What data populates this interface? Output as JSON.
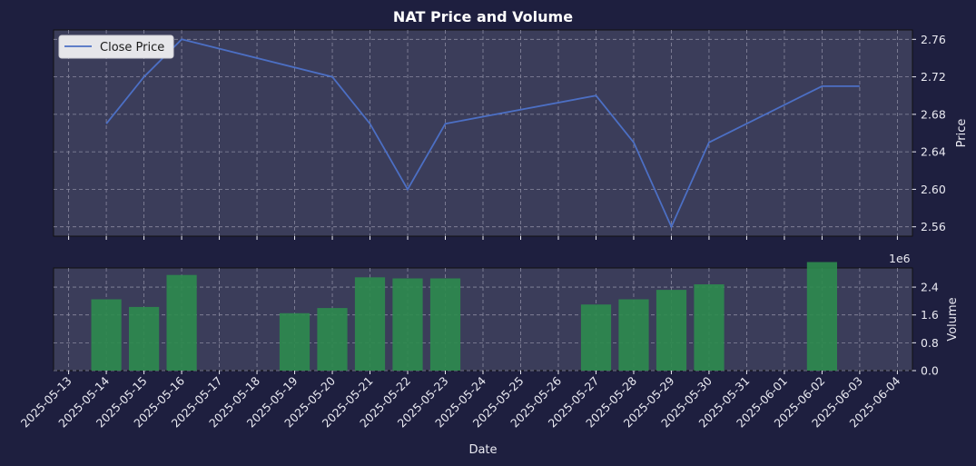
{
  "chart_data": [
    {
      "type": "line",
      "title": "NAT Price and Volume",
      "ylabel": "Price",
      "ylim": [
        2.55,
        2.77
      ],
      "yticks": [
        "2.56",
        "2.60",
        "2.64",
        "2.68",
        "2.72",
        "2.76"
      ],
      "grid": true,
      "legend_position": "top-left",
      "series": [
        {
          "name": "Close Price",
          "color": "#4c6fc4",
          "x": [
            "2025-05-14",
            "2025-05-15",
            "2025-05-16",
            "2025-05-20",
            "2025-05-21",
            "2025-05-22",
            "2025-05-23",
            "2025-05-27",
            "2025-05-28",
            "2025-05-29",
            "2025-05-30",
            "2025-06-02",
            "2025-06-03"
          ],
          "values": [
            2.67,
            2.72,
            2.76,
            2.72,
            2.67,
            2.6,
            2.67,
            2.7,
            2.65,
            2.56,
            2.65,
            2.71,
            2.71
          ]
        }
      ]
    },
    {
      "type": "bar",
      "ylabel": "Volume",
      "xlabel": "Date",
      "y_multiplier": "1e6",
      "ylim": [
        0,
        2.95
      ],
      "yticks": [
        "0.0",
        "0.8",
        "1.6",
        "2.4"
      ],
      "grid": true,
      "series": [
        {
          "name": "",
          "color": "#2e8b4e",
          "x": [
            "2025-05-14",
            "2025-05-15",
            "2025-05-16",
            "2025-05-19",
            "2025-05-20",
            "2025-05-21",
            "2025-05-22",
            "2025-05-23",
            "2025-05-27",
            "2025-05-28",
            "2025-05-29",
            "2025-05-30",
            "2025-06-02"
          ],
          "values": [
            2.05,
            1.83,
            2.75,
            1.65,
            1.8,
            2.68,
            2.65,
            2.65,
            1.9,
            2.05,
            2.32,
            2.48,
            3.12
          ]
        }
      ]
    }
  ],
  "x_dates": [
    "2025-05-13",
    "2025-05-14",
    "2025-05-15",
    "2025-05-16",
    "2025-05-17",
    "2025-05-18",
    "2025-05-19",
    "2025-05-20",
    "2025-05-21",
    "2025-05-22",
    "2025-05-23",
    "2025-05-24",
    "2025-05-25",
    "2025-05-26",
    "2025-05-27",
    "2025-05-28",
    "2025-05-29",
    "2025-05-30",
    "2025-05-31",
    "2025-06-01",
    "2025-06-02",
    "2025-06-03",
    "2025-06-04"
  ],
  "colors": {
    "figure_bg": "#1e1f3f",
    "axes_bg": "#3b3d5a",
    "grid": "#8a8aa0",
    "line": "#4c6fc4",
    "bar": "#2e8b4e",
    "text": "#eaeaf2"
  }
}
